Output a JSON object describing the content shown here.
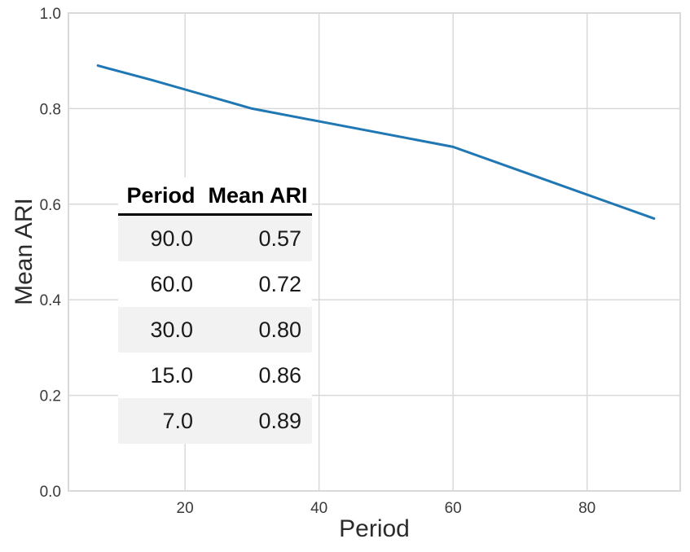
{
  "style": {
    "background_color": "#ffffff",
    "line_color": "#1f77b4",
    "grid_color": "#d9d9d9",
    "tick_text_color": "#3a3a3a",
    "axis_title_color": "#2b2b2b",
    "table_stripe_color": "#f2f2f2",
    "table_header_rule_color": "#000000"
  },
  "chart_data": {
    "type": "line",
    "title": "",
    "xlabel": "Period",
    "ylabel": "Mean ARI",
    "x": [
      7,
      15,
      30,
      60,
      90
    ],
    "y": [
      0.89,
      0.86,
      0.8,
      0.72,
      0.57
    ],
    "xlim": [
      2.6,
      93.9
    ],
    "ylim": [
      0.0,
      1.0
    ],
    "xticks": [
      20,
      40,
      60,
      80
    ],
    "xtick_labels": [
      "20",
      "40",
      "60",
      "80"
    ],
    "yticks": [
      0.0,
      0.2,
      0.4,
      0.6,
      0.8,
      1.0
    ],
    "ytick_labels": [
      "0.0",
      "0.2",
      "0.4",
      "0.6",
      "0.8",
      "1.0"
    ],
    "grid": true,
    "legend": false,
    "inset_table": {
      "headers": [
        "Period",
        "Mean ARI"
      ],
      "rows": [
        [
          "90.0",
          "0.57"
        ],
        [
          "60.0",
          "0.72"
        ],
        [
          "30.0",
          "0.80"
        ],
        [
          "15.0",
          "0.86"
        ],
        [
          "7.0",
          "0.89"
        ]
      ]
    }
  }
}
